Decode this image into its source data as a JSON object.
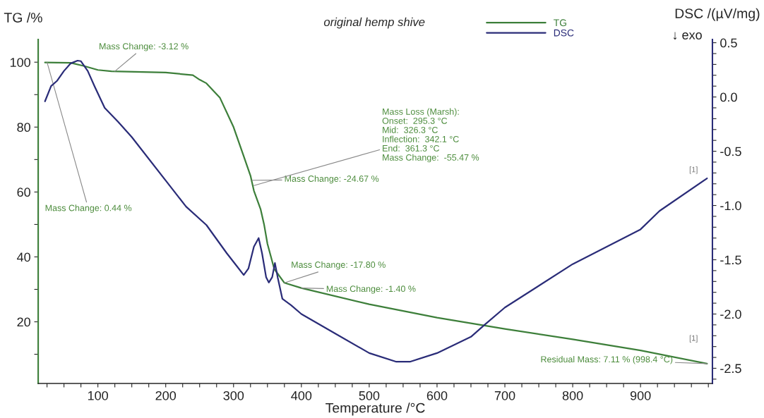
{
  "chart_data": {
    "type": "line",
    "title": "original hemp shive",
    "xlabel": "Temperature /°C",
    "ylabel": "TG /%",
    "y2label": "DSC /(µV/mg)",
    "xlim": [
      12,
      1006
    ],
    "xticks": [
      {
        "value": 25,
        "label": null
      },
      {
        "value": 50,
        "label": null
      },
      {
        "value": 75,
        "label": null
      },
      100,
      {
        "value": 125,
        "label": null
      },
      {
        "value": 150,
        "label": null
      },
      {
        "value": 175,
        "label": null
      },
      200,
      {
        "value": 225,
        "label": null
      },
      {
        "value": 250,
        "label": null
      },
      {
        "value": 275,
        "label": null
      },
      300,
      {
        "value": 325,
        "label": null
      },
      {
        "value": 350,
        "label": null
      },
      {
        "value": 375,
        "label": null
      },
      400,
      {
        "value": 425,
        "label": null
      },
      {
        "value": 450,
        "label": null
      },
      {
        "value": 475,
        "label": null
      },
      500,
      {
        "value": 525,
        "label": null
      },
      {
        "value": 550,
        "label": null
      },
      {
        "value": 575,
        "label": null
      },
      600,
      {
        "value": 625,
        "label": null
      },
      {
        "value": 650,
        "label": null
      },
      {
        "value": 675,
        "label": null
      },
      700,
      {
        "value": 725,
        "label": null
      },
      {
        "value": 750,
        "label": null
      },
      {
        "value": 775,
        "label": null
      },
      800,
      {
        "value": 825,
        "label": null
      },
      {
        "value": 850,
        "label": null
      },
      {
        "value": 875,
        "label": null
      },
      900,
      {
        "value": 925,
        "label": null
      },
      {
        "value": 950,
        "label": null
      },
      {
        "value": 975,
        "label": null
      },
      {
        "value": 1000,
        "label": null
      }
    ],
    "ylim": [
      1,
      107
    ],
    "yticks": [
      {
        "value": 10,
        "label": null
      },
      20,
      {
        "value": 30,
        "label": null
      },
      40,
      {
        "value": 50,
        "label": null
      },
      60,
      {
        "value": 70,
        "label": null
      },
      80,
      {
        "value": 90,
        "label": null
      },
      100
    ],
    "y2lim": [
      -2.64,
      0.53
    ],
    "y2ticks": [
      {
        "value": -2.6,
        "label": null
      },
      {
        "value": -2.5,
        "label": "-2.5"
      },
      {
        "value": -2.4,
        "label": null
      },
      {
        "value": -2.3,
        "label": null
      },
      {
        "value": -2.2,
        "label": null
      },
      {
        "value": -2.1,
        "label": null
      },
      {
        "value": -2.0,
        "label": "-2.0"
      },
      {
        "value": -1.9,
        "label": null
      },
      {
        "value": -1.8,
        "label": null
      },
      {
        "value": -1.7,
        "label": null
      },
      {
        "value": -1.6,
        "label": null
      },
      {
        "value": -1.5,
        "label": "-1.5"
      },
      {
        "value": -1.4,
        "label": null
      },
      {
        "value": -1.3,
        "label": null
      },
      {
        "value": -1.2,
        "label": null
      },
      {
        "value": -1.1,
        "label": null
      },
      {
        "value": -1.0,
        "label": "-1.0"
      },
      {
        "value": -0.9,
        "label": null
      },
      {
        "value": -0.8,
        "label": null
      },
      {
        "value": -0.7,
        "label": null
      },
      {
        "value": -0.6,
        "label": null
      },
      {
        "value": -0.5,
        "label": "-0.5"
      },
      {
        "value": -0.4,
        "label": null
      },
      {
        "value": -0.3,
        "label": null
      },
      {
        "value": -0.2,
        "label": null
      },
      {
        "value": -0.1,
        "label": null
      },
      {
        "value": 0.0,
        "label": "0.0"
      },
      {
        "value": 0.1,
        "label": null
      },
      {
        "value": 0.2,
        "label": null
      },
      {
        "value": 0.3,
        "label": null
      },
      {
        "value": 0.4,
        "label": null
      },
      {
        "value": 0.5,
        "label": "0.5"
      }
    ],
    "grid": false,
    "legend": "top",
    "marker": "none",
    "line_style": "solid",
    "series": [
      {
        "name": "TG",
        "color": "#3d7f3a",
        "x": [
          22,
          60,
          80,
          100,
          120,
          200,
          240,
          250,
          260,
          280,
          300,
          315,
          325,
          330,
          340,
          345,
          350,
          360,
          375,
          400,
          500,
          600,
          700,
          800,
          900,
          998
        ],
        "values": [
          99.9,
          99.8,
          98.8,
          97.6,
          97.2,
          96.8,
          96,
          94.6,
          93.5,
          89,
          80,
          71,
          65,
          60.4,
          54.6,
          50,
          44,
          36.3,
          32,
          30.4,
          25.4,
          21.3,
          17.8,
          14.6,
          11.2,
          7.1
        ]
      },
      {
        "name": "DSC",
        "color": "#2a2c78",
        "axis": "y2",
        "x": [
          22,
          31,
          40,
          50,
          60,
          70,
          75,
          85,
          95,
          110,
          130,
          150,
          200,
          230,
          260,
          290,
          305,
          315,
          322,
          330,
          337,
          342,
          348,
          352,
          357,
          361,
          365,
          372,
          385,
          400,
          450,
          500,
          540,
          560,
          600,
          650,
          670,
          700,
          800,
          900,
          928,
          998
        ],
        "values": [
          -0.04,
          0.1,
          0.15,
          0.24,
          0.31,
          0.335,
          0.33,
          0.24,
          0.1,
          -0.1,
          -0.23,
          -0.37,
          -0.77,
          -1.01,
          -1.18,
          -1.44,
          -1.56,
          -1.64,
          -1.58,
          -1.38,
          -1.3,
          -1.44,
          -1.66,
          -1.71,
          -1.66,
          -1.53,
          -1.66,
          -1.86,
          -1.92,
          -2.0,
          -2.18,
          -2.36,
          -2.44,
          -2.44,
          -2.36,
          -2.21,
          -2.1,
          -1.94,
          -1.54,
          -1.22,
          -1.05,
          -0.75
        ]
      }
    ],
    "annotations": [
      {
        "text": "Mass Change: -3.12 %",
        "x": 125,
        "y": 97.2
      },
      {
        "text": "Mass Change: 0.44 %",
        "x": 25,
        "y": 100
      },
      {
        "text": "Mass Change: -24.67 %",
        "x": 327,
        "y": 63.6
      },
      {
        "text": "Mass Loss (Marsh):\nOnset:  295.3 °C\nMid:  326.3 °C\nInflection:  342.1 °C\nEnd:  361.3 °C\nMass Change:  -55.47 %",
        "x": 330,
        "y": 62
      },
      {
        "text": "Mass Change: -17.80 %",
        "x": 375,
        "y": 32
      },
      {
        "text": "Mass Change: -1.40 %",
        "x": 400,
        "y": 30.4
      },
      {
        "text": "Residual Mass: 7.11 % (998.4 °C)",
        "x": 998.4,
        "y": 7.11
      },
      "[1]",
      "[1]",
      "↓ exo"
    ]
  }
}
